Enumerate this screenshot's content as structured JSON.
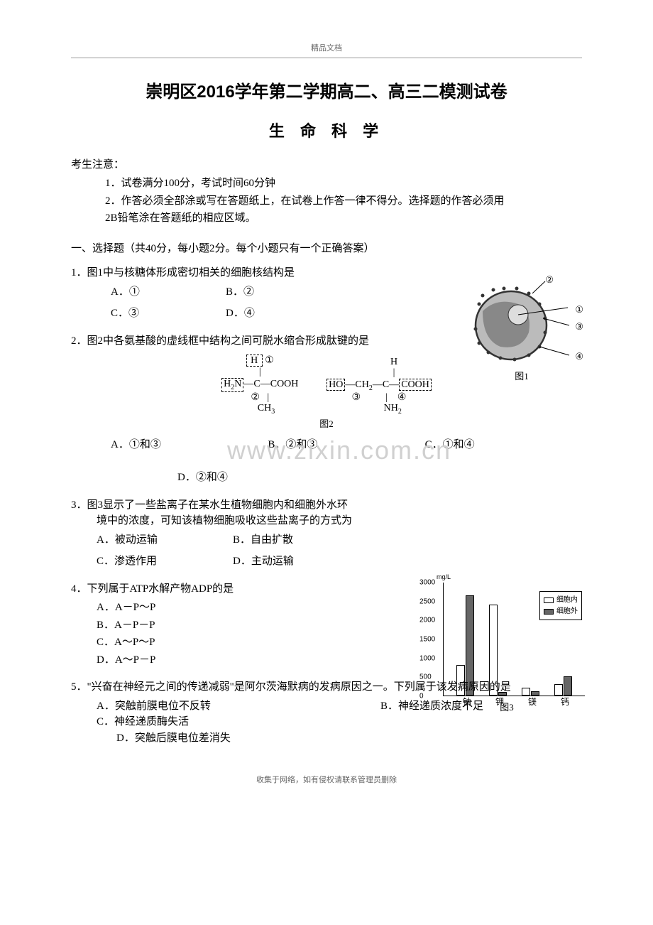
{
  "header_small": "精品文档",
  "footer_small": "收集于网络，如有侵权请联系管理员删除",
  "title": "崇明区2016学年第二学期高二、高三二模测试卷",
  "subtitle": "生 命 科 学",
  "notice_label": "考生注意：",
  "notices": [
    "1．试卷满分100分，考试时间60分钟",
    "2．作答必须全部涂或写在答题纸上，在试卷上作答一律不得分。选择题的作答必须用",
    "2B铅笔涂在答题纸的相应区域。"
  ],
  "section_title": "一、选择题（共40分，每小题2分。每个小题只有一个正确答案）",
  "q1": {
    "stem": "1．图1中与核糖体形成密切相关的细胞核结构是",
    "opts": [
      "A．①",
      "B．②",
      "C．③",
      "D．④"
    ],
    "fig_label": "图1",
    "callouts": [
      "①",
      "②",
      "③",
      "④"
    ]
  },
  "q2": {
    "stem": "2．图2中各氨基酸的虚线框中结构之间可脱水缩合形成肽键的是",
    "fig_label": "图2",
    "circ": [
      "①",
      "②",
      "③",
      "④"
    ],
    "opts": [
      "A．①和③",
      "B．②和③",
      "C．①和④",
      "D．②和④"
    ],
    "watermark": "www.zixin.com.cn"
  },
  "q3": {
    "stem_l1": "3．图3显示了一些盐离子在某水生植物细胞内和细胞外水环",
    "stem_l2": "境中的浓度，可知该植物细胞吸收这些盐离子的方式为",
    "opts": [
      "A．被动运输",
      "B．自由扩散",
      "C．渗透作用",
      "D．主动运输"
    ],
    "chart": {
      "unit": "mg/L",
      "y_max": 3000,
      "ticks": [
        0,
        500,
        1000,
        1500,
        2000,
        2500,
        3000
      ],
      "categories": [
        "钠",
        "钾",
        "镁",
        "钙"
      ],
      "series_inside_label": "细胞内",
      "series_outside_label": "细胞外",
      "inside_values": [
        800,
        2400,
        200,
        300
      ],
      "outside_values": [
        2650,
        100,
        120,
        500
      ],
      "color_inside": "#ffffff",
      "color_outside": "#666666",
      "border_color": "#000000"
    },
    "fig_label": "图3"
  },
  "q4": {
    "stem": "4．下列属于ATP水解产物ADP的是",
    "opts": [
      "A．A－P～P",
      "B．A－P－P",
      "C．A～P～P",
      "D．A～P－P"
    ]
  },
  "q5": {
    "stem": "5．\"兴奋在神经元之间的传递减弱\"是阿尔茨海默病的发病原因之一。下列属于该发病原因的是",
    "opts": [
      "A．突触前膜电位不反转",
      "B．神经递质浓度不足",
      "C．神经递质酶失活",
      "D．突触后膜电位差消失"
    ]
  }
}
